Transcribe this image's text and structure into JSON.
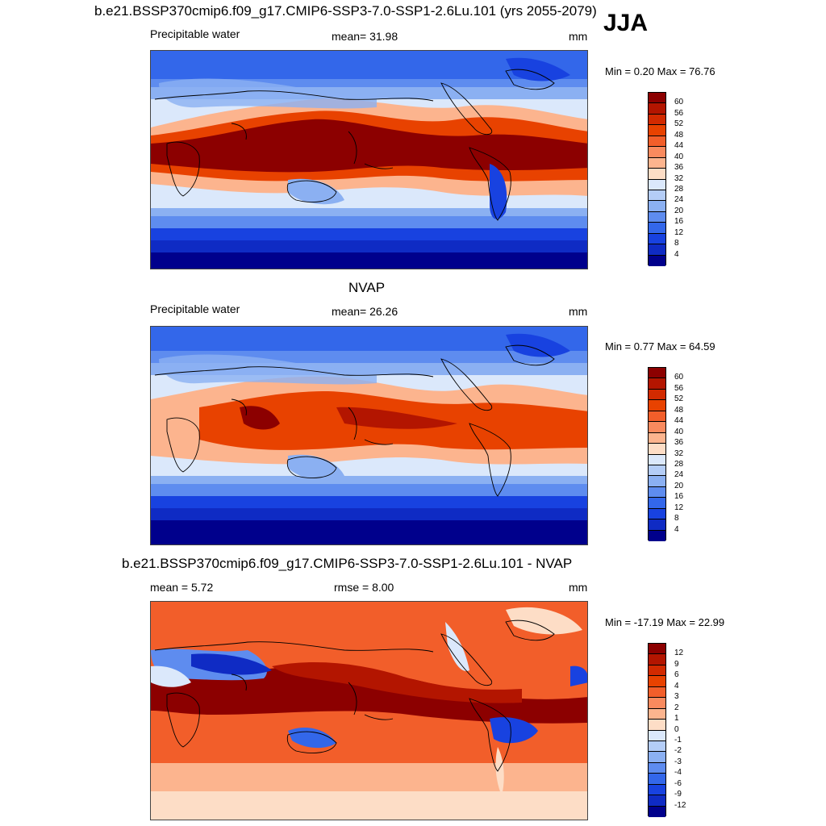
{
  "title": "b.e21.BSSP370cmip6.f09_g17.CMIP6-SSP3-7.0-SSP1-2.6Lu.101 (yrs 2055-2079)",
  "season": "JJA",
  "panels": [
    {
      "panel_title": "",
      "variable": "Precipitable water",
      "stat_text": "mean=  31.98",
      "units": "mm",
      "minmax": "Min =   0.20 Max =  76.76",
      "colorbar": {
        "labels": [
          "60",
          "56",
          "52",
          "48",
          "44",
          "40",
          "36",
          "32",
          "28",
          "24",
          "20",
          "16",
          "12",
          "8",
          "4"
        ],
        "colors": [
          "#8c0000",
          "#b31500",
          "#d22a00",
          "#e84200",
          "#f25e2a",
          "#f98a5e",
          "#fcb48e",
          "#fdddc6",
          "#dbe8fb",
          "#b4cdf7",
          "#8bb0f2",
          "#5e8cef",
          "#3367ea",
          "#1842e0",
          "#0f2bc4",
          "#00008c"
        ]
      }
    },
    {
      "panel_title": "NVAP",
      "variable": "Precipitable water",
      "stat_text": "mean=  26.26",
      "units": "mm",
      "minmax": "Min =   0.77 Max =  64.59",
      "colorbar": {
        "labels": [
          "60",
          "56",
          "52",
          "48",
          "44",
          "40",
          "36",
          "32",
          "28",
          "24",
          "20",
          "16",
          "12",
          "8",
          "4"
        ],
        "colors": [
          "#8c0000",
          "#b31500",
          "#d22a00",
          "#e84200",
          "#f25e2a",
          "#f98a5e",
          "#fcb48e",
          "#fdddc6",
          "#dbe8fb",
          "#b4cdf7",
          "#8bb0f2",
          "#5e8cef",
          "#3367ea",
          "#1842e0",
          "#0f2bc4",
          "#00008c"
        ]
      }
    },
    {
      "panel_title": "b.e21.BSSP370cmip6.f09_g17.CMIP6-SSP3-7.0-SSP1-2.6Lu.101 - NVAP",
      "variable": "mean =   5.72",
      "stat_text": "rmse =   8.00",
      "units": "mm",
      "minmax": "Min = -17.19 Max =  22.99",
      "colorbar": {
        "labels": [
          "12",
          "9",
          "6",
          "4",
          "3",
          "2",
          "1",
          "0",
          "-1",
          "-2",
          "-3",
          "-4",
          "-6",
          "-9",
          "-12"
        ],
        "colors": [
          "#8c0000",
          "#b31500",
          "#d22a00",
          "#e84200",
          "#f25e2a",
          "#f98a5e",
          "#fcb48e",
          "#fdddc6",
          "#dbe8fb",
          "#b4cdf7",
          "#8bb0f2",
          "#5e8cef",
          "#3367ea",
          "#1842e0",
          "#0f2bc4",
          "#00008c"
        ]
      }
    }
  ]
}
